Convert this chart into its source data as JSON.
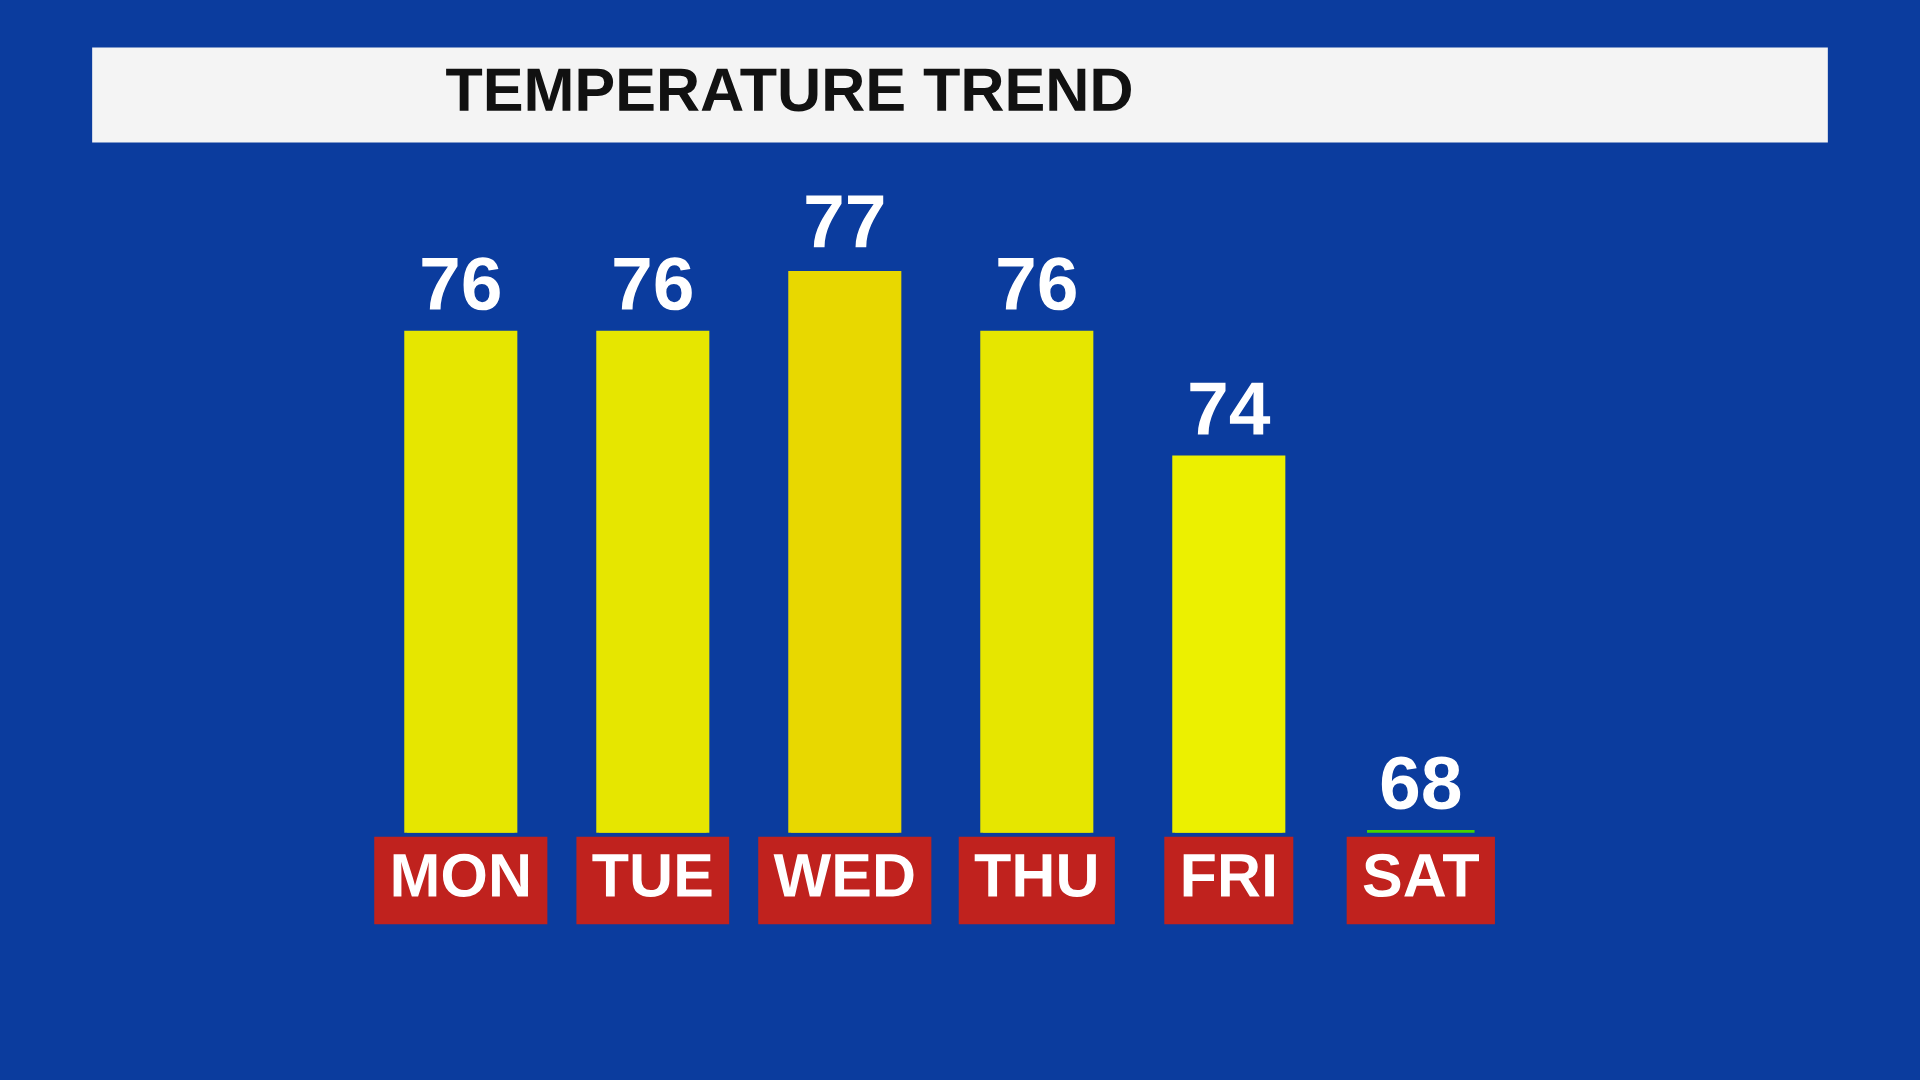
{
  "chart_data": {
    "type": "bar",
    "title": "TEMPERATURE TREND",
    "categories": [
      "MON",
      "TUE",
      "WED",
      "THU",
      "FRI",
      "SAT"
    ],
    "values": [
      76,
      76,
      77,
      76,
      74,
      68
    ],
    "colors": [
      "#e6e600",
      "#e6e600",
      "#e8d800",
      "#e6e600",
      "#ecf000",
      "#44d400"
    ],
    "ylim": [
      68,
      77
    ],
    "data_labels": true,
    "tick_labels": "x",
    "grid": false
  }
}
